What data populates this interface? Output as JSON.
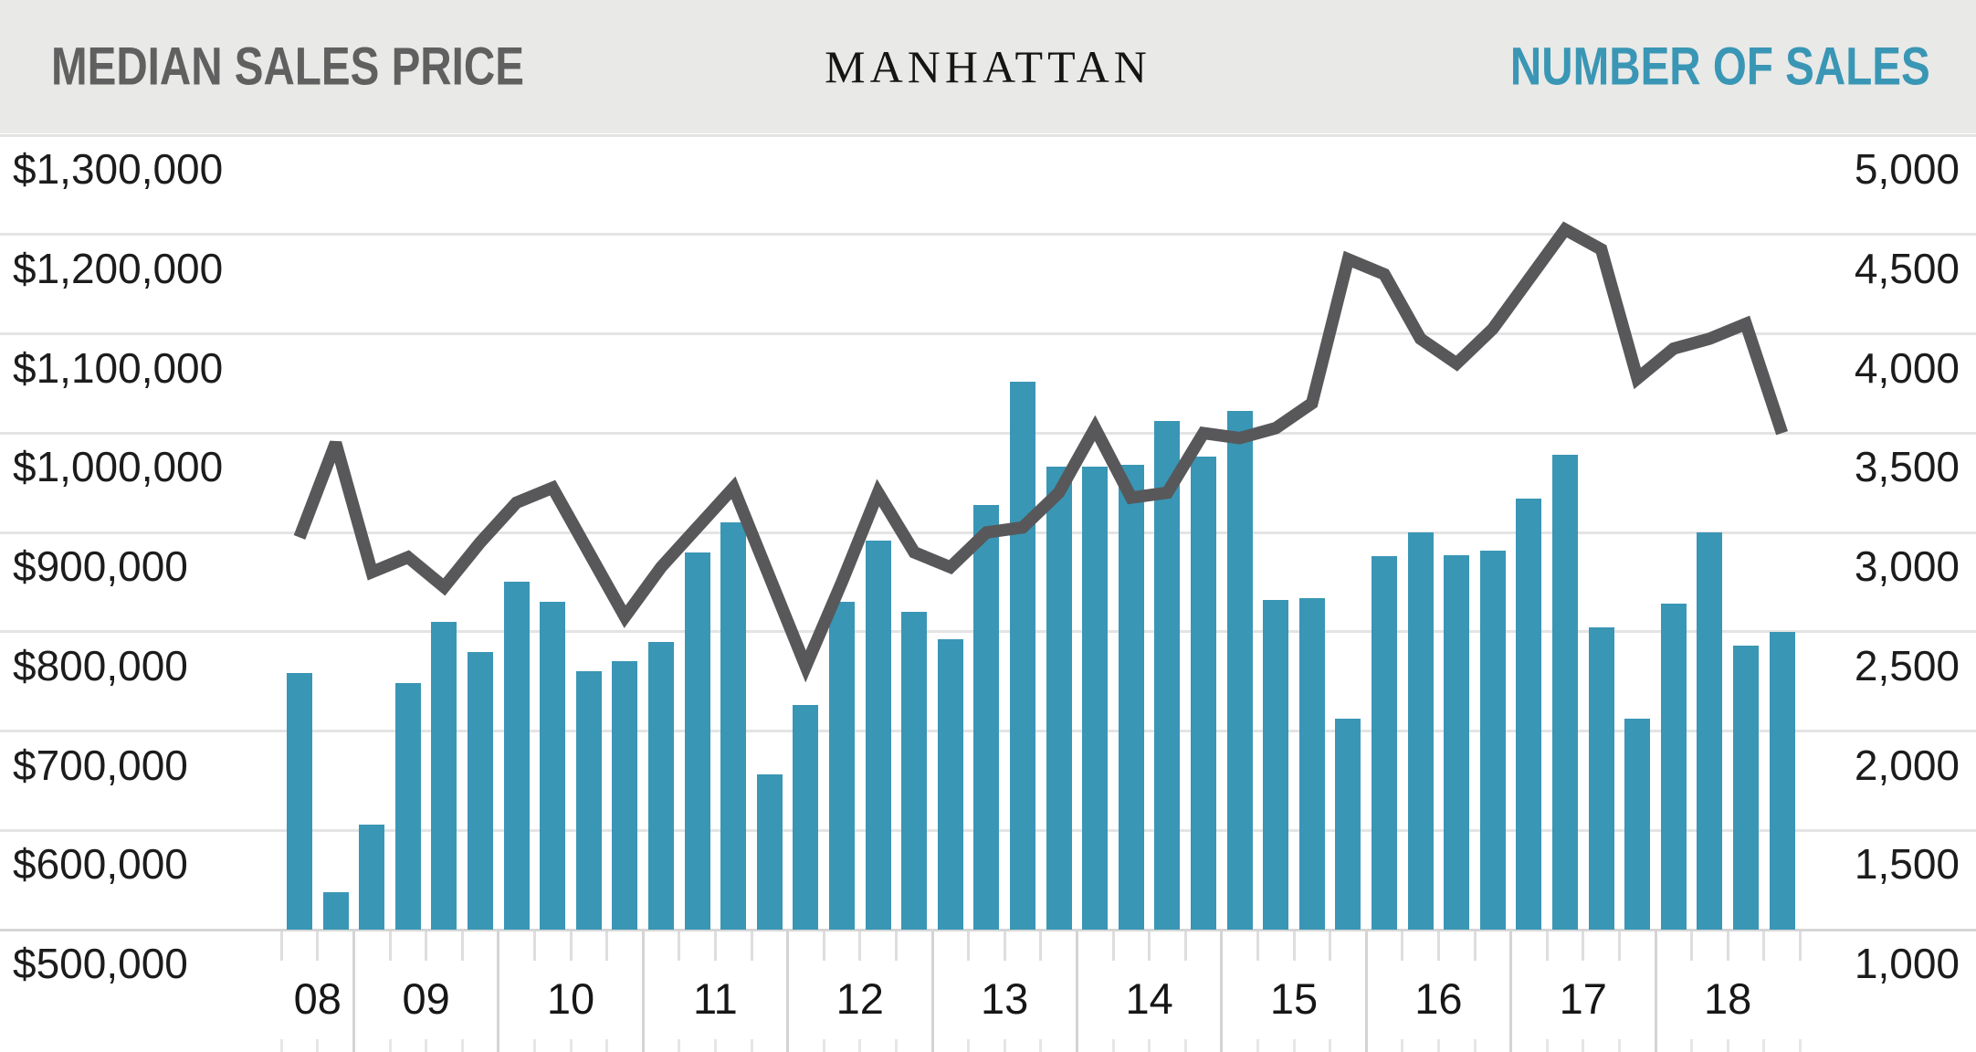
{
  "header": {
    "left_title": "MEDIAN SALES PRICE",
    "center_title": "MANHATTAN",
    "right_title": "NUMBER OF SALES",
    "price_title_color": "#606060",
    "sales_title_color": "#3a96b5",
    "band_color": "#e9e9e7"
  },
  "left_axis": {
    "labels": [
      "$1,300,000",
      "$1,200,000",
      "$1,100,000",
      "$1,000,000",
      "$900,000",
      "$800,000",
      "$700,000",
      "$600,000",
      "$500,000"
    ]
  },
  "right_axis": {
    "labels": [
      "5,000",
      "4,500",
      "4,000",
      "3,500",
      "3,000",
      "2,500",
      "2,000",
      "1,500",
      "1,000"
    ]
  },
  "x_axis": {
    "year_labels": [
      "08",
      "09",
      "10",
      "11",
      "12",
      "13",
      "14",
      "15",
      "16",
      "17",
      "18"
    ]
  },
  "chart_data": {
    "type": "bar+line",
    "title": "MANHATTAN",
    "x": [
      "2008 Q3",
      "2008 Q4",
      "2009 Q1",
      "2009 Q2",
      "2009 Q3",
      "2009 Q4",
      "2010 Q1",
      "2010 Q2",
      "2010 Q3",
      "2010 Q4",
      "2011 Q1",
      "2011 Q2",
      "2011 Q3",
      "2011 Q4",
      "2012 Q1",
      "2012 Q2",
      "2012 Q3",
      "2012 Q4",
      "2013 Q1",
      "2013 Q2",
      "2013 Q3",
      "2013 Q4",
      "2014 Q1",
      "2014 Q2",
      "2014 Q3",
      "2014 Q4",
      "2015 Q1",
      "2015 Q2",
      "2015 Q3",
      "2015 Q4",
      "2016 Q1",
      "2016 Q2",
      "2016 Q3",
      "2016 Q4",
      "2017 Q1",
      "2017 Q2",
      "2017 Q3",
      "2017 Q4",
      "2018 Q1",
      "2018 Q2",
      "2018 Q3",
      "2018 Q4"
    ],
    "series": [
      {
        "name": "Number of Sales",
        "type": "bar",
        "axis": "right",
        "color": "#3a96b5",
        "values": [
          2290,
          1190,
          1530,
          2240,
          2550,
          2400,
          2750,
          2650,
          2300,
          2350,
          2450,
          2900,
          3050,
          1780,
          2130,
          2650,
          2960,
          2600,
          2460,
          3140,
          3760,
          3330,
          3330,
          3340,
          3560,
          3380,
          3610,
          2660,
          2670,
          2060,
          2880,
          3000,
          2885,
          2910,
          3170,
          3390,
          2520,
          2060,
          2640,
          3000,
          2430,
          2500
        ]
      },
      {
        "name": "Median Sales Price",
        "type": "line",
        "axis": "left",
        "color": "#58585a",
        "values": [
          895000,
          990000,
          860000,
          875000,
          845000,
          890000,
          930000,
          945000,
          880000,
          815000,
          865000,
          905000,
          945000,
          855000,
          765000,
          850000,
          940000,
          880000,
          865000,
          900000,
          905000,
          940000,
          1005000,
          935000,
          940000,
          1000000,
          995000,
          1005000,
          1030000,
          1175000,
          1160000,
          1095000,
          1070000,
          1105000,
          1155000,
          1205000,
          1185000,
          1055000,
          1085000,
          1095000,
          1110000,
          1000000
        ]
      }
    ],
    "y_left": {
      "min": 500000,
      "max": 1300000,
      "step": 100000
    },
    "y_right": {
      "min": 1000,
      "max": 5000,
      "step": 500
    },
    "grid": true,
    "legend_position": "none"
  }
}
